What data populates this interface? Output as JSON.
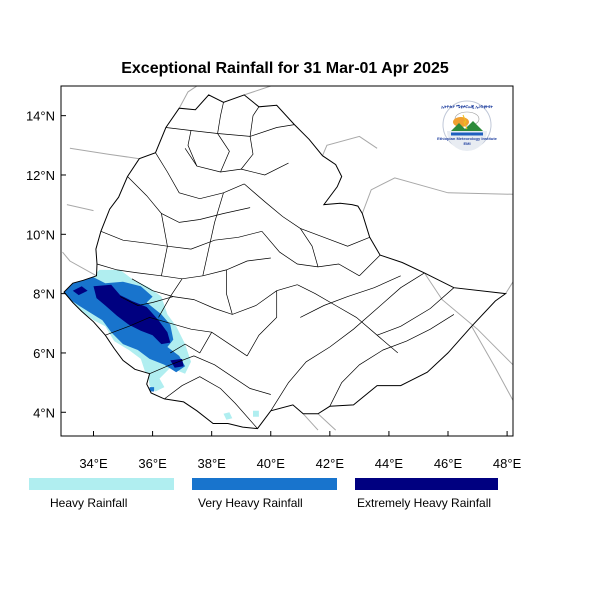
{
  "title": "Exceptional Rainfall for 31 Mar-01 Apr 2025",
  "colors": {
    "heavy": "#b0eef0",
    "very_heavy": "#1874cd",
    "extremely_heavy": "#000080",
    "border": "#000000",
    "neighbor_border": "#a0a0a0"
  },
  "axes": {
    "x_ticks": [
      {
        "value": 34,
        "label": "34°E"
      },
      {
        "value": 36,
        "label": "36°E"
      },
      {
        "value": 38,
        "label": "38°E"
      },
      {
        "value": 40,
        "label": "40°E"
      },
      {
        "value": 42,
        "label": "42°E"
      },
      {
        "value": 44,
        "label": "44°E"
      },
      {
        "value": 46,
        "label": "46°E"
      },
      {
        "value": 48,
        "label": "48°E"
      }
    ],
    "y_ticks": [
      {
        "value": 4,
        "label": "4°N"
      },
      {
        "value": 6,
        "label": "6°N"
      },
      {
        "value": 8,
        "label": "8°N"
      },
      {
        "value": 10,
        "label": "10°N"
      },
      {
        "value": 12,
        "label": "12°N"
      },
      {
        "value": 14,
        "label": "14°N"
      }
    ],
    "lon_range": [
      32.9,
      48.2
    ],
    "lat_range": [
      3.2,
      15.0
    ]
  },
  "legend": [
    {
      "key": "heavy",
      "label": "Heavy Rainfall",
      "color": "#b0eef0"
    },
    {
      "key": "very_heavy",
      "label": "Very Heavy Rainfall",
      "color": "#1874cd"
    },
    {
      "key": "extremely_heavy",
      "label": "Extremely Heavy Rainfall",
      "color": "#000080"
    }
  ],
  "logo": {
    "top_text": "ኢትዮጵያ ሜቲዎሮሎጂ ኢንስቲትዩት",
    "bottom_text": "Ethiopian Meteorology Institute",
    "sub_text": "EMI"
  }
}
